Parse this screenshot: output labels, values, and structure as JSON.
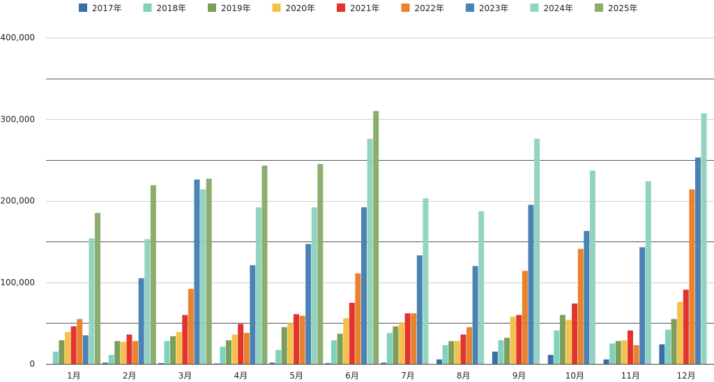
{
  "chart_data": {
    "type": "bar",
    "categories": [
      "1月",
      "2月",
      "3月",
      "4月",
      "5月",
      "6月",
      "7月",
      "8月",
      "9月",
      "10月",
      "11月",
      "12月"
    ],
    "ylim": [
      0,
      400000
    ],
    "y_ticks": [
      0,
      100000,
      200000,
      300000,
      400000
    ],
    "y_tick_labels": [
      "0",
      "100,000",
      "200,000",
      "300,000",
      "400,000"
    ],
    "grid": true,
    "legend_position": "top",
    "series": [
      {
        "name": "2017年",
        "color": "#3a6fa6",
        "values": [
          0,
          1500,
          1000,
          500,
          1500,
          1000,
          1500,
          5500,
          15000,
          11000,
          5500,
          24000
        ]
      },
      {
        "name": "2018年",
        "color": "#7fd3be",
        "values": [
          15000,
          11000,
          28000,
          21000,
          17000,
          29000,
          38000,
          23000,
          29000,
          41000,
          25000,
          42000
        ]
      },
      {
        "name": "2019年",
        "color": "#7d9e5b",
        "values": [
          29000,
          28000,
          34000,
          29000,
          45000,
          37000,
          46000,
          28000,
          32000,
          60000,
          28000,
          55000
        ]
      },
      {
        "name": "2020年",
        "color": "#f4c24a",
        "values": [
          39000,
          27000,
          39000,
          36000,
          50000,
          56000,
          51000,
          28000,
          58000,
          54000,
          29000,
          76000
        ]
      },
      {
        "name": "2021年",
        "color": "#e0342c",
        "values": [
          46000,
          36000,
          60000,
          49000,
          61000,
          75000,
          62000,
          36000,
          60000,
          74000,
          41000,
          91000
        ]
      },
      {
        "name": "2022年",
        "color": "#e8822f",
        "values": [
          55000,
          28000,
          92000,
          38000,
          59000,
          111000,
          62000,
          45000,
          114000,
          141000,
          23000,
          214000
        ]
      },
      {
        "name": "2023年",
        "color": "#4b82b4",
        "values": [
          35000,
          105000,
          226000,
          121000,
          147000,
          192000,
          133000,
          120000,
          195000,
          163000,
          143000,
          253000
        ]
      },
      {
        "name": "2024年",
        "color": "#93d4c1",
        "values": [
          154000,
          153000,
          214000,
          192000,
          192000,
          276000,
          203000,
          187000,
          276000,
          237000,
          224000,
          307000
        ]
      },
      {
        "name": "2025年",
        "color": "#8cad6f",
        "values": [
          185000,
          219000,
          227000,
          243000,
          245000,
          310000,
          0,
          0,
          0,
          0,
          0,
          0
        ]
      }
    ]
  }
}
